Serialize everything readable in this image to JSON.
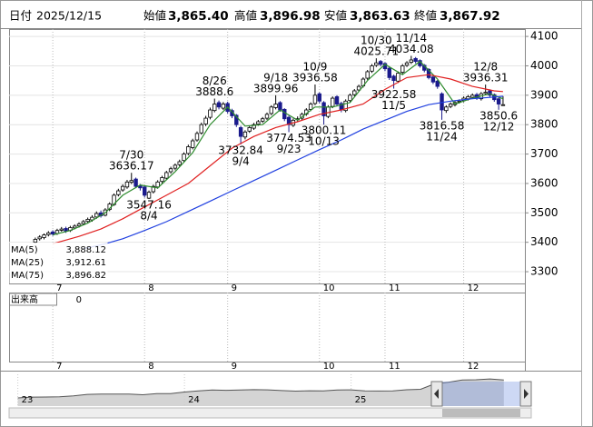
{
  "header": {
    "date_label": "日付",
    "date": "2025/12/15",
    "items": [
      {
        "label": "始値",
        "value": "3,865.40",
        "color": "#000000"
      },
      {
        "label": "高値",
        "value": "3,896.98",
        "color": "#e01010"
      },
      {
        "label": "安値",
        "value": "3,863.63",
        "color": "#1a8a1a"
      },
      {
        "label": "終値",
        "value": "3,867.92",
        "color": "#000000"
      }
    ]
  },
  "chart_data": {
    "type": "candlestick",
    "up_color": "#ffffff",
    "down_color": "#1a1a8c",
    "edge_color": "#000000",
    "xlim": [
      -6,
      112
    ],
    "ylim": [
      3260,
      4125
    ],
    "xticks": [
      {
        "value": 4,
        "label": "7"
      },
      {
        "value": 25,
        "label": "8"
      },
      {
        "value": 44,
        "label": "9"
      },
      {
        "value": 65,
        "label": "10"
      },
      {
        "value": 80,
        "label": "11"
      },
      {
        "value": 98,
        "label": "12"
      }
    ],
    "yticks": [
      3300,
      3400,
      3500,
      3600,
      3700,
      3800,
      3900,
      4000,
      4100
    ],
    "grid": true,
    "open": [
      3400,
      3412,
      3416,
      3426,
      3435,
      3430,
      3441,
      3447,
      3440,
      3449,
      3456,
      3463,
      3471,
      3476,
      3486,
      3500,
      3492,
      3512,
      3528,
      3562,
      3578,
      3588,
      3604,
      3615,
      3592,
      3588,
      3550,
      3572,
      3588,
      3607,
      3618,
      3640,
      3652,
      3664,
      3678,
      3702,
      3722,
      3748,
      3772,
      3802,
      3825,
      3848,
      3875,
      3856,
      3872,
      3848,
      3832,
      3790,
      3758,
      3778,
      3788,
      3802,
      3812,
      3822,
      3838,
      3858,
      3875,
      3852,
      3825,
      3798,
      3818,
      3822,
      3836,
      3852,
      3872,
      3905,
      3875,
      3828,
      3862,
      3895,
      3872,
      3848,
      3882,
      3902,
      3918,
      3932,
      3958,
      3982,
      4002,
      4015,
      4008,
      3992,
      3965,
      3948,
      3978,
      4002,
      4012,
      4025,
      4018,
      4002,
      3988,
      3962,
      3948,
      3905,
      3848,
      3862,
      3868,
      3878,
      3882,
      3888,
      3893,
      3902,
      3888,
      3906,
      3915,
      3902,
      3888,
      3865.4
    ],
    "high": [
      3416,
      3424,
      3430,
      3438,
      3441,
      3446,
      3452,
      3453,
      3456,
      3461,
      3468,
      3476,
      3484,
      3492,
      3505,
      3508,
      3516,
      3536,
      3566,
      3582,
      3597,
      3612,
      3636.17,
      3620,
      3598,
      3592,
      3576,
      3596,
      3611,
      3626,
      3643,
      3657,
      3668,
      3681,
      3706,
      3732,
      3752,
      3777,
      3807,
      3830,
      3858,
      3888.6,
      3882,
      3877,
      3878,
      3854,
      3836,
      3796,
      3781,
      3796,
      3806,
      3816,
      3826,
      3841,
      3866,
      3899.96,
      3880,
      3856,
      3830,
      3821,
      3828,
      3841,
      3856,
      3876,
      3936.58,
      3910,
      3880,
      3866,
      3896,
      3900,
      3878,
      3886,
      3906,
      3921,
      3936,
      3961,
      3986,
      4006,
      4025.71,
      4020,
      4012,
      3996,
      3970,
      3981,
      4006,
      4016,
      4034.08,
      4030,
      4022,
      4006,
      3992,
      3966,
      3952,
      3910,
      3866,
      3876,
      3881,
      3886,
      3896,
      3901,
      3906,
      3908,
      3911,
      3936.31,
      3920,
      3906,
      3892,
      3896.98
    ],
    "low": [
      3395,
      3406,
      3410,
      3420,
      3422,
      3425,
      3436,
      3432,
      3435,
      3444,
      3450,
      3458,
      3466,
      3470,
      3480,
      3484,
      3488,
      3506,
      3524,
      3556,
      3572,
      3582,
      3598,
      3584,
      3576,
      3552,
      3547.16,
      3566,
      3582,
      3600,
      3612,
      3633,
      3645,
      3658,
      3672,
      3696,
      3716,
      3742,
      3766,
      3795,
      3818,
      3842,
      3852,
      3850,
      3838,
      3822,
      3792,
      3732.84,
      3750,
      3772,
      3782,
      3796,
      3806,
      3816,
      3832,
      3852,
      3844,
      3812,
      3774.53,
      3792,
      3810,
      3816,
      3830,
      3846,
      3866,
      3872,
      3800.11,
      3822,
      3856,
      3862,
      3842,
      3842,
      3876,
      3896,
      3912,
      3926,
      3952,
      3976,
      3996,
      3998,
      3982,
      3952,
      3922.58,
      3942,
      3972,
      3996,
      4006,
      4008,
      3994,
      3978,
      3954,
      3938,
      3922,
      3816.58,
      3840,
      3856,
      3862,
      3872,
      3876,
      3882,
      3887,
      3884,
      3882,
      3900,
      3894,
      3878,
      3850.6,
      3863.63
    ],
    "close": [
      3410,
      3418,
      3425,
      3432,
      3428,
      3440,
      3445,
      3438,
      3450,
      3455,
      3462,
      3470,
      3478,
      3485,
      3498,
      3490,
      3510,
      3530,
      3560,
      3575,
      3590,
      3605,
      3610,
      3590,
      3585,
      3560,
      3570,
      3590,
      3605,
      3620,
      3637,
      3650,
      3662,
      3674,
      3700,
      3725,
      3745,
      3770,
      3800,
      3822,
      3850,
      3870,
      3860,
      3870,
      3845,
      3830,
      3800,
      3760,
      3775,
      3790,
      3800,
      3810,
      3820,
      3835,
      3860,
      3870,
      3850,
      3820,
      3800,
      3815,
      3820,
      3835,
      3850,
      3870,
      3900,
      3880,
      3830,
      3860,
      3890,
      3870,
      3850,
      3880,
      3900,
      3915,
      3930,
      3955,
      3980,
      4000,
      4010,
      4005,
      3990,
      3960,
      3950,
      3975,
      4000,
      4010,
      4020,
      4015,
      4000,
      3985,
      3960,
      3945,
      3930,
      3850,
      3860,
      3870,
      3875,
      3880,
      3890,
      3895,
      3900,
      3890,
      3905,
      3910,
      3900,
      3885,
      3870,
      3867.92
    ],
    "ma": [
      {
        "name": "MA(5)",
        "color": "#2e8b2e",
        "legend_value": "3,888.12",
        "x": [
          4,
          8,
          12,
          16,
          20,
          24,
          28,
          32,
          36,
          40,
          44,
          48,
          52,
          56,
          60,
          64,
          68,
          72,
          76,
          80,
          84,
          88,
          92,
          96,
          100,
          104,
          107
        ],
        "values": [
          3425,
          3440,
          3465,
          3500,
          3560,
          3595,
          3585,
          3640,
          3705,
          3800,
          3860,
          3795,
          3800,
          3850,
          3815,
          3860,
          3860,
          3875,
          3950,
          4005,
          3970,
          4015,
          3955,
          3870,
          3890,
          3905,
          3888.12
        ]
      },
      {
        "name": "MA(25)",
        "color": "#e02020",
        "legend_value": "3,912.61",
        "x": [
          4,
          10,
          15,
          20,
          25,
          30,
          35,
          40,
          45,
          50,
          55,
          60,
          65,
          70,
          75,
          80,
          85,
          90,
          95,
          100,
          105,
          107
        ],
        "values": [
          3395,
          3420,
          3445,
          3480,
          3520,
          3560,
          3600,
          3660,
          3720,
          3760,
          3790,
          3810,
          3835,
          3850,
          3870,
          3920,
          3960,
          3970,
          3955,
          3930,
          3915,
          3912.61
        ]
      },
      {
        "name": "MA(75)",
        "color": "#2040e0",
        "legend_value": "3,896.82",
        "x": [
          11,
          16,
          20,
          25,
          30,
          35,
          40,
          45,
          50,
          55,
          60,
          65,
          70,
          75,
          80,
          85,
          90,
          95,
          100,
          105,
          107
        ],
        "values": [
          3378,
          3395,
          3412,
          3440,
          3470,
          3505,
          3540,
          3575,
          3610,
          3645,
          3680,
          3715,
          3748,
          3785,
          3815,
          3845,
          3868,
          3880,
          3888,
          3894,
          3896.82
        ]
      }
    ],
    "annotations": [
      {
        "x": 22,
        "date": "7/30",
        "value": 3636.17,
        "side": "above"
      },
      {
        "x": 26,
        "date": "8/4",
        "value": 3547.16,
        "side": "below"
      },
      {
        "x": 41,
        "date": "8/26",
        "value": 3888.6,
        "side": "above"
      },
      {
        "x": 47,
        "date": "9/4",
        "value": 3732.84,
        "side": "below"
      },
      {
        "x": 55,
        "date": "9/18",
        "value": 3899.96,
        "side": "above"
      },
      {
        "x": 58,
        "date": "9/23",
        "value": 3774.53,
        "side": "below"
      },
      {
        "x": 64,
        "date": "10/9",
        "value": 3936.58,
        "side": "above"
      },
      {
        "x": 66,
        "date": "10/13",
        "value": 3800.11,
        "side": "below"
      },
      {
        "x": 78,
        "date": "10/30",
        "value": 4025.71,
        "side": "above"
      },
      {
        "x": 82,
        "date": "11/5",
        "value": 3922.58,
        "side": "below"
      },
      {
        "x": 86,
        "date": "11/14",
        "value": 4034.08,
        "side": "above"
      },
      {
        "x": 93,
        "date": "11/24",
        "value": 3816.58,
        "side": "below"
      },
      {
        "x": 103,
        "date": "12/8",
        "value": 3936.31,
        "side": "above"
      },
      {
        "x": 106,
        "date": "12/12",
        "value": 3850.6,
        "side": "below"
      }
    ]
  },
  "volume": {
    "label": "出来高",
    "value": 0
  },
  "navigator": {
    "color": "#555555",
    "fill": "#d4d4d4",
    "xlim": [
      -0.5,
      37.3
    ],
    "ylim": [
      1000,
      4500
    ],
    "xticks": [
      {
        "value": 0,
        "label": "23"
      },
      {
        "value": 12,
        "label": "24"
      },
      {
        "value": 24,
        "label": "25"
      }
    ],
    "values": [
      1900,
      1990,
      2000,
      2030,
      2130,
      2290,
      2320,
      2330,
      2320,
      2250,
      2370,
      2370,
      2550,
      2680,
      2770,
      2740,
      2770,
      2810,
      2790,
      2710,
      2650,
      2690,
      2680,
      2780,
      2790,
      2680,
      2660,
      2670,
      2800,
      2850,
      3450,
      3620,
      3870,
      3900,
      3990,
      3880
    ]
  }
}
